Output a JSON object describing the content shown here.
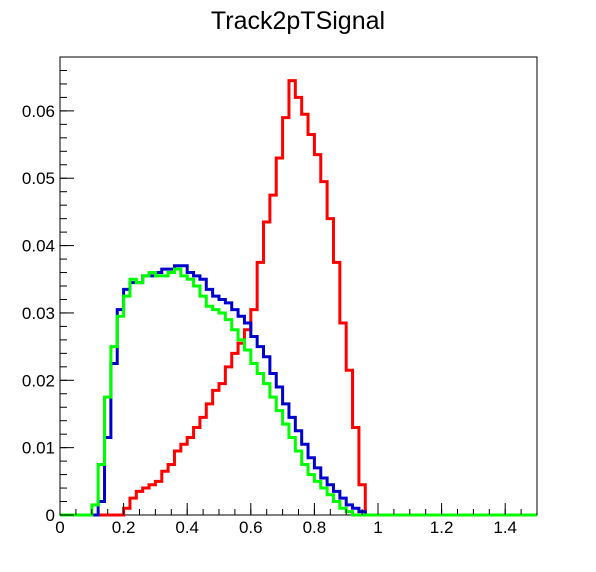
{
  "chart_data": {
    "type": "line",
    "title": "Track2pTSignal",
    "xlabel": "",
    "ylabel": "",
    "xlim": [
      0,
      1.5
    ],
    "ylim": [
      0,
      0.068
    ],
    "grid": false,
    "legend": "none",
    "x_ticks": [
      {
        "value": 0,
        "label": "0"
      },
      {
        "value": 0.2,
        "label": "0.2"
      },
      {
        "value": 0.4,
        "label": "0.4"
      },
      {
        "value": 0.6,
        "label": "0.6"
      },
      {
        "value": 0.8,
        "label": "0.8"
      },
      {
        "value": 1.0,
        "label": "1"
      },
      {
        "value": 1.2,
        "label": "1.2"
      },
      {
        "value": 1.4,
        "label": "1.4"
      }
    ],
    "y_ticks": [
      {
        "value": 0,
        "label": "0"
      },
      {
        "value": 0.01,
        "label": "0.01"
      },
      {
        "value": 0.02,
        "label": "0.02"
      },
      {
        "value": 0.03,
        "label": "0.03"
      },
      {
        "value": 0.04,
        "label": "0.04"
      },
      {
        "value": 0.05,
        "label": "0.05"
      },
      {
        "value": 0.06,
        "label": "0.06"
      }
    ],
    "bin_edges": {
      "start": 0,
      "width": 0.02
    },
    "series": [
      {
        "color": "#ff0000",
        "values": [
          0,
          0,
          0,
          0,
          0,
          0,
          0,
          0,
          0,
          0,
          0.001,
          0.0025,
          0.0035,
          0.004,
          0.0045,
          0.005,
          0.0065,
          0.0075,
          0.0095,
          0.0105,
          0.0115,
          0.013,
          0.0145,
          0.0165,
          0.0185,
          0.0195,
          0.022,
          0.024,
          0.0255,
          0.0275,
          0.0305,
          0.0375,
          0.0435,
          0.0475,
          0.053,
          0.059,
          0.0645,
          0.062,
          0.0595,
          0.0565,
          0.0535,
          0.0495,
          0.044,
          0.0375,
          0.0285,
          0.0215,
          0.013,
          0.0045,
          0,
          0,
          0,
          0,
          0,
          0,
          0,
          0,
          0,
          0,
          0,
          0,
          0,
          0,
          0,
          0,
          0,
          0,
          0,
          0,
          0,
          0,
          0,
          0,
          0,
          0,
          0
        ]
      },
      {
        "color": "#0000cc",
        "values": [
          0,
          0,
          0,
          0,
          0,
          0,
          0.002,
          0.0115,
          0.0225,
          0.0305,
          0.0335,
          0.0345,
          0.0345,
          0.0355,
          0.0355,
          0.036,
          0.0365,
          0.0365,
          0.037,
          0.037,
          0.036,
          0.0355,
          0.035,
          0.0335,
          0.0325,
          0.032,
          0.0315,
          0.0305,
          0.0295,
          0.0285,
          0.0265,
          0.025,
          0.0235,
          0.021,
          0.019,
          0.0165,
          0.0145,
          0.0125,
          0.0105,
          0.0085,
          0.007,
          0.0055,
          0.0045,
          0.0035,
          0.0025,
          0.0015,
          0.001,
          0.0005,
          0,
          0,
          0,
          0,
          0,
          0,
          0,
          0,
          0,
          0,
          0,
          0,
          0,
          0,
          0,
          0,
          0,
          0,
          0,
          0,
          0,
          0,
          0,
          0,
          0,
          0,
          0
        ]
      },
      {
        "color": "#00ff00",
        "values": [
          0,
          0,
          0,
          0,
          0,
          0.0015,
          0.0075,
          0.0175,
          0.025,
          0.0295,
          0.0325,
          0.035,
          0.0345,
          0.0355,
          0.036,
          0.0355,
          0.0355,
          0.036,
          0.0365,
          0.0355,
          0.035,
          0.034,
          0.0325,
          0.031,
          0.0305,
          0.03,
          0.029,
          0.0275,
          0.026,
          0.0245,
          0.0225,
          0.021,
          0.0195,
          0.0175,
          0.0155,
          0.0135,
          0.0115,
          0.0095,
          0.0075,
          0.006,
          0.005,
          0.004,
          0.003,
          0.002,
          0.001,
          0.0005,
          0,
          0,
          0,
          0,
          0,
          0,
          0,
          0,
          0,
          0,
          0,
          0,
          0,
          0,
          0,
          0,
          0,
          0,
          0,
          0,
          0,
          0,
          0,
          0,
          0,
          0,
          0,
          0,
          0
        ]
      }
    ]
  }
}
